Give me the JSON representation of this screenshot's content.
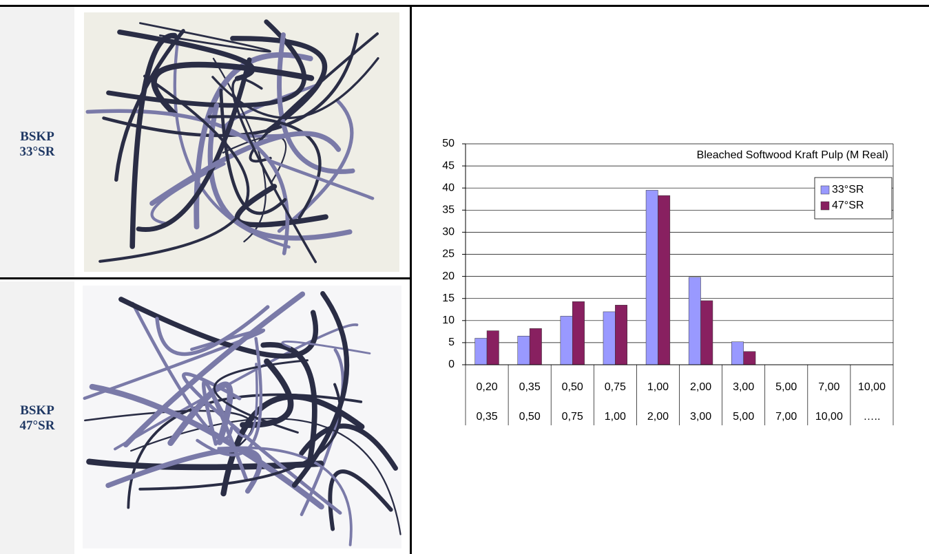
{
  "rows": [
    {
      "label": "BSKP",
      "sublabel": "33°SR"
    },
    {
      "label": "BSKP",
      "sublabel": "47°SR"
    }
  ],
  "chart_data": {
    "type": "bar",
    "title": "Bleached Softwood Kraft Pulp (M Real)",
    "categories": [
      [
        "0,20",
        "0,35"
      ],
      [
        "0,35",
        "0,50"
      ],
      [
        "0,50",
        "0,75"
      ],
      [
        "0,75",
        "1,00"
      ],
      [
        "1,00",
        "2,00"
      ],
      [
        "2,00",
        "3,00"
      ],
      [
        "3,00",
        "5,00"
      ],
      [
        "5,00",
        "7,00"
      ],
      [
        "7,00",
        "10,00"
      ],
      [
        "10,00",
        "….."
      ]
    ],
    "series": [
      {
        "name": "33°SR",
        "color": "#9999ff",
        "values": [
          6,
          6.5,
          11,
          12,
          39.5,
          19.8,
          5.2,
          0,
          0,
          0
        ]
      },
      {
        "name": "47°SR",
        "color": "#882060",
        "values": [
          7.7,
          8.2,
          14.3,
          13.5,
          38.3,
          14.5,
          3,
          0,
          0,
          0
        ]
      }
    ],
    "ylim": [
      0,
      50
    ],
    "yticks": [
      0,
      5,
      10,
      15,
      20,
      25,
      30,
      35,
      40,
      45,
      50
    ],
    "grid": true,
    "legend": "upper right"
  }
}
